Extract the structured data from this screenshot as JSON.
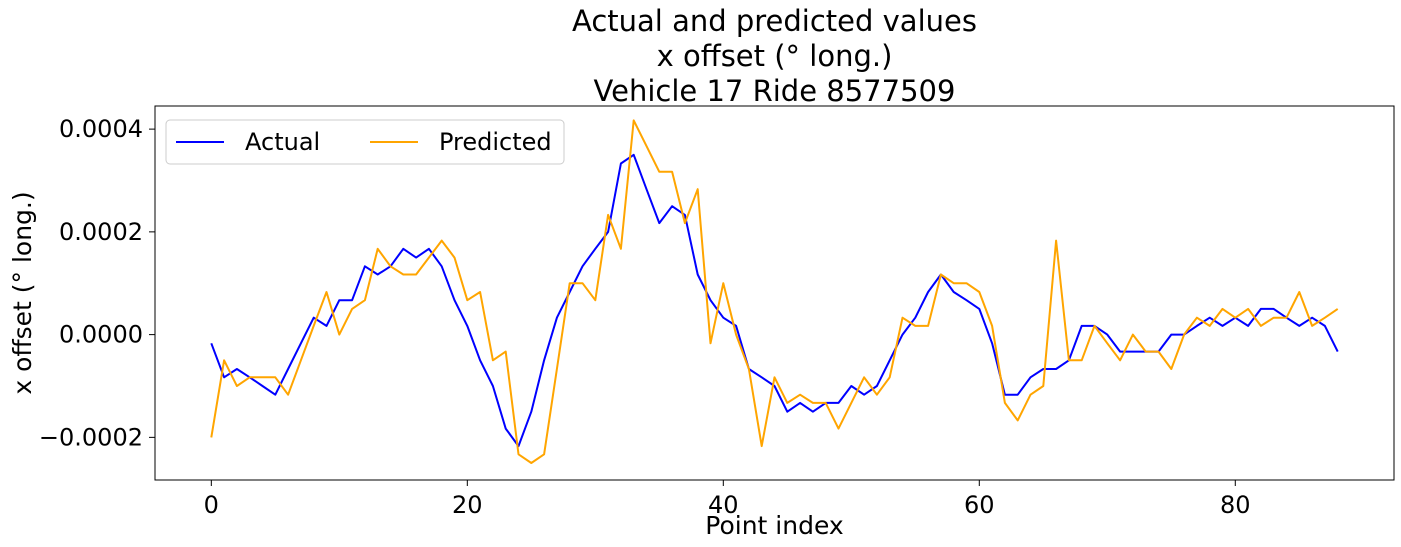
{
  "chart_data": {
    "type": "line",
    "title_lines": [
      "Actual and predicted values",
      "x offset (° long.)",
      "Vehicle 17 Ride 8577509"
    ],
    "xlabel": "Point index",
    "ylabel": "x offset (° long.)",
    "xlim": [
      -4.4,
      92.4
    ],
    "ylim": [
      -0.000283,
      0.000445
    ],
    "x_ticks": [
      0,
      20,
      40,
      60,
      80
    ],
    "x_tick_labels": [
      "0",
      "20",
      "40",
      "60",
      "80"
    ],
    "y_ticks": [
      -0.0002,
      0.0,
      0.0002,
      0.0004
    ],
    "y_tick_labels": [
      "−0.0002",
      "0.0000",
      "0.0002",
      "0.0004"
    ],
    "grid": false,
    "legend_position": "top-left",
    "series": [
      {
        "name": "Actual",
        "color": "#0000ff",
        "x": [
          0,
          1,
          2,
          3,
          4,
          5,
          6,
          7,
          8,
          9,
          10,
          11,
          12,
          13,
          14,
          15,
          16,
          17,
          18,
          19,
          20,
          21,
          22,
          23,
          24,
          25,
          26,
          27,
          28,
          29,
          30,
          31,
          32,
          33,
          34,
          35,
          36,
          37,
          38,
          39,
          40,
          41,
          42,
          43,
          44,
          45,
          46,
          47,
          48,
          49,
          50,
          51,
          52,
          53,
          54,
          55,
          56,
          57,
          58,
          59,
          60,
          61,
          62,
          63,
          64,
          65,
          66,
          67,
          68,
          69,
          70,
          71,
          72,
          73,
          74,
          75,
          76,
          77,
          78,
          79,
          80,
          81,
          82,
          83,
          84,
          85,
          86,
          87,
          88
        ],
        "values": [
          -1.7e-05,
          -8.3e-05,
          -6.7e-05,
          -8.3e-05,
          -0.0001,
          -0.000117,
          -6.7e-05,
          -1.7e-05,
          3.3e-05,
          1.7e-05,
          6.7e-05,
          6.7e-05,
          0.000133,
          0.000117,
          0.000133,
          0.000167,
          0.00015,
          0.000167,
          0.000133,
          6.7e-05,
          1.7e-05,
          -5e-05,
          -0.0001,
          -0.000183,
          -0.000217,
          -0.00015,
          -5e-05,
          3.3e-05,
          8.3e-05,
          0.000133,
          0.000167,
          0.0002,
          0.000333,
          0.00035,
          0.000283,
          0.000217,
          0.00025,
          0.000233,
          0.000117,
          6.7e-05,
          3.3e-05,
          1.7e-05,
          -6.7e-05,
          -8.3e-05,
          -0.0001,
          -0.00015,
          -0.000133,
          -0.00015,
          -0.000133,
          -0.000133,
          -0.0001,
          -0.000117,
          -0.0001,
          -5e-05,
          0.0,
          3.3e-05,
          8.3e-05,
          0.000117,
          8.3e-05,
          6.7e-05,
          5e-05,
          -1.7e-05,
          -0.000117,
          -0.000117,
          -8.3e-05,
          -6.7e-05,
          -6.7e-05,
          -5e-05,
          1.7e-05,
          1.7e-05,
          0.0,
          -3.3e-05,
          -3.3e-05,
          -3.3e-05,
          -3.3e-05,
          0.0,
          0.0,
          1.7e-05,
          3.3e-05,
          1.7e-05,
          3.3e-05,
          1.7e-05,
          5e-05,
          5e-05,
          3.3e-05,
          1.7e-05,
          3.3e-05,
          1.7e-05,
          -3.3e-05
        ]
      },
      {
        "name": "Predicted",
        "color": "#ffa500",
        "x": [
          0,
          1,
          2,
          3,
          4,
          5,
          6,
          7,
          8,
          9,
          10,
          11,
          12,
          13,
          14,
          15,
          16,
          17,
          18,
          19,
          20,
          21,
          22,
          23,
          24,
          25,
          26,
          27,
          28,
          29,
          30,
          31,
          32,
          33,
          34,
          35,
          36,
          37,
          38,
          39,
          40,
          41,
          42,
          43,
          44,
          45,
          46,
          47,
          48,
          49,
          50,
          51,
          52,
          53,
          54,
          55,
          56,
          57,
          58,
          59,
          60,
          61,
          62,
          63,
          64,
          65,
          66,
          67,
          68,
          69,
          70,
          71,
          72,
          73,
          74,
          75,
          76,
          77,
          78,
          79,
          80,
          81,
          82,
          83,
          84,
          85,
          86,
          87,
          88
        ],
        "values": [
          -0.0002,
          -5e-05,
          -0.0001,
          -8.3e-05,
          -8.3e-05,
          -8.3e-05,
          -0.000117,
          -5e-05,
          1.7e-05,
          8.3e-05,
          0.0,
          5e-05,
          6.7e-05,
          0.000167,
          0.000133,
          0.000117,
          0.000117,
          0.00015,
          0.000183,
          0.00015,
          6.7e-05,
          8.3e-05,
          -5e-05,
          -3.3e-05,
          -0.000233,
          -0.00025,
          -0.000233,
          -6.7e-05,
          0.0001,
          0.0001,
          6.7e-05,
          0.000233,
          0.000167,
          0.000417,
          0.000367,
          0.000317,
          0.000317,
          0.000217,
          0.000283,
          -1.7e-05,
          0.0001,
          0.0,
          -6.7e-05,
          -0.000217,
          -8.3e-05,
          -0.000133,
          -0.000117,
          -0.000133,
          -0.000133,
          -0.000183,
          -0.000133,
          -8.3e-05,
          -0.000117,
          -8.3e-05,
          3.3e-05,
          1.7e-05,
          1.7e-05,
          0.000117,
          0.0001,
          0.0001,
          8.3e-05,
          1.7e-05,
          -0.000133,
          -0.000167,
          -0.000117,
          -0.0001,
          0.000183,
          -5e-05,
          -5e-05,
          1.7e-05,
          -1.7e-05,
          -5e-05,
          0.0,
          -3.3e-05,
          -3.3e-05,
          -6.7e-05,
          0.0,
          3.3e-05,
          1.7e-05,
          5e-05,
          3.3e-05,
          5e-05,
          1.7e-05,
          3.3e-05,
          3.3e-05,
          8.3e-05,
          1.7e-05,
          3.3e-05,
          5e-05
        ]
      }
    ]
  }
}
